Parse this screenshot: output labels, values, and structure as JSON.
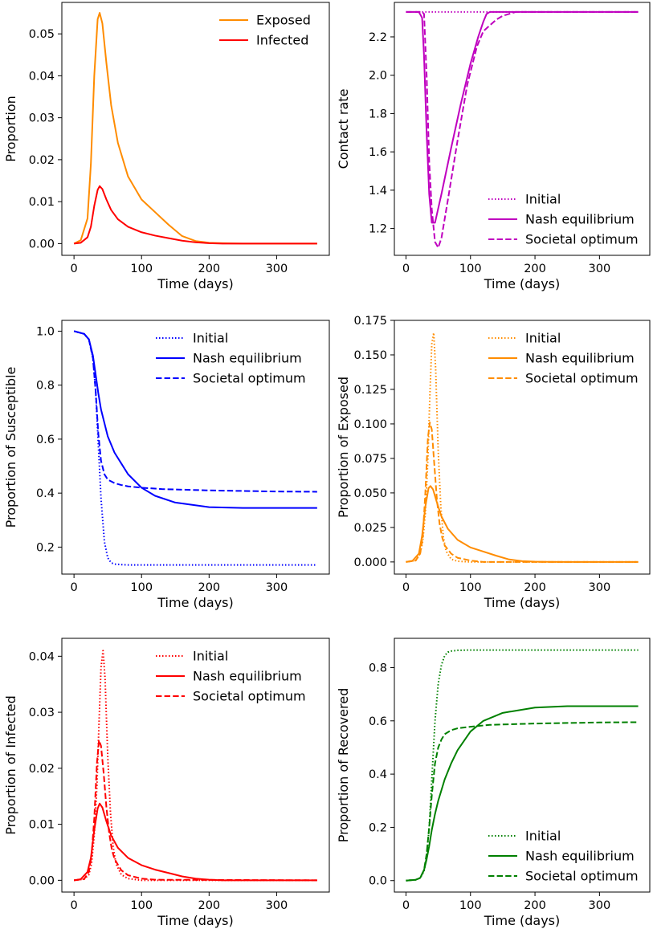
{
  "chart_data": [
    {
      "type": "line",
      "xlabel": "Time (days)",
      "ylabel": "Proportion",
      "xlim": [
        -18,
        378
      ],
      "ylim": [
        -0.0028,
        0.0575
      ],
      "xticks": [
        0,
        100,
        200,
        300
      ],
      "yticks": [
        0.0,
        0.01,
        0.02,
        0.03,
        0.04,
        0.05
      ],
      "ytick_labels": [
        "0.00",
        "0.01",
        "0.02",
        "0.03",
        "0.04",
        "0.05"
      ],
      "legend": "top-right",
      "series": [
        {
          "name": "Exposed",
          "color": "#ff8c00",
          "style": "solid",
          "x": [
            0,
            10,
            20,
            25,
            30,
            35,
            38,
            42,
            48,
            55,
            65,
            80,
            100,
            120,
            140,
            160,
            180,
            200,
            220,
            250,
            300,
            360
          ],
          "y": [
            0,
            0.0008,
            0.006,
            0.019,
            0.04,
            0.0535,
            0.055,
            0.0525,
            0.043,
            0.033,
            0.024,
            0.016,
            0.0105,
            0.0075,
            0.0045,
            0.0018,
            0.0006,
            0.0002,
            0.0001,
            0,
            0,
            0
          ]
        },
        {
          "name": "Infected",
          "color": "#ff0000",
          "style": "solid",
          "x": [
            0,
            10,
            20,
            25,
            30,
            35,
            38,
            42,
            48,
            55,
            65,
            80,
            100,
            120,
            140,
            160,
            180,
            200,
            220,
            250,
            300,
            360
          ],
          "y": [
            0,
            0.0002,
            0.0015,
            0.004,
            0.009,
            0.0128,
            0.0137,
            0.013,
            0.0105,
            0.008,
            0.0058,
            0.004,
            0.0027,
            0.0019,
            0.0013,
            0.0007,
            0.0003,
            0.0001,
            0,
            0,
            0,
            0
          ]
        }
      ]
    },
    {
      "type": "line",
      "xlabel": "Time (days)",
      "ylabel": "Contact rate",
      "xlim": [
        -18,
        378
      ],
      "ylim": [
        1.06,
        2.38
      ],
      "xticks": [
        0,
        100,
        200,
        300
      ],
      "yticks": [
        1.2,
        1.4,
        1.6,
        1.8,
        2.0,
        2.2
      ],
      "ytick_labels": [
        "1.2",
        "1.4",
        "1.6",
        "1.8",
        "2.0",
        "2.2"
      ],
      "legend": "bottom-right",
      "series": [
        {
          "name": "Initial",
          "color": "#bf00bf",
          "style": "dotted",
          "x": [
            0,
            360
          ],
          "y": [
            2.33,
            2.33
          ]
        },
        {
          "name": "Nash equilibrium",
          "color": "#bf00bf",
          "style": "solid",
          "x": [
            0,
            20,
            25,
            28,
            32,
            36,
            40,
            45,
            55,
            70,
            85,
            100,
            112,
            120,
            125,
            130,
            360
          ],
          "y": [
            2.33,
            2.33,
            2.3,
            2.1,
            1.7,
            1.38,
            1.23,
            1.23,
            1.38,
            1.62,
            1.85,
            2.06,
            2.2,
            2.28,
            2.32,
            2.33,
            2.33
          ]
        },
        {
          "name": "Societal optimum",
          "color": "#bf00bf",
          "style": "dashed",
          "x": [
            0,
            25,
            28,
            32,
            36,
            40,
            45,
            50,
            55,
            65,
            80,
            95,
            110,
            120,
            130,
            140,
            150,
            160,
            170,
            360
          ],
          "y": [
            2.33,
            2.33,
            2.32,
            2.0,
            1.55,
            1.3,
            1.13,
            1.1,
            1.15,
            1.35,
            1.66,
            1.95,
            2.15,
            2.23,
            2.26,
            2.29,
            2.31,
            2.32,
            2.33,
            2.33
          ]
        }
      ]
    },
    {
      "type": "line",
      "xlabel": "Time (days)",
      "ylabel": "Proportion of Susceptible",
      "xlim": [
        -18,
        378
      ],
      "ylim": [
        0.1,
        1.04
      ],
      "xticks": [
        0,
        100,
        200,
        300
      ],
      "yticks": [
        0.2,
        0.4,
        0.6,
        0.8,
        1.0
      ],
      "ytick_labels": [
        "0.2",
        "0.4",
        "0.6",
        "0.8",
        "1.0"
      ],
      "legend": "top-right",
      "series": [
        {
          "name": "Initial",
          "color": "#0000ff",
          "style": "dotted",
          "x": [
            0,
            15,
            22,
            28,
            32,
            36,
            40,
            45,
            50,
            55,
            60,
            70,
            80,
            100,
            360
          ],
          "y": [
            1.0,
            0.99,
            0.97,
            0.9,
            0.78,
            0.58,
            0.38,
            0.22,
            0.16,
            0.142,
            0.137,
            0.135,
            0.134,
            0.134,
            0.134
          ]
        },
        {
          "name": "Nash equilibrium",
          "color": "#0000ff",
          "style": "solid",
          "x": [
            0,
            15,
            22,
            28,
            32,
            36,
            40,
            45,
            50,
            60,
            70,
            80,
            100,
            120,
            150,
            200,
            250,
            360
          ],
          "y": [
            1.0,
            0.99,
            0.97,
            0.91,
            0.84,
            0.77,
            0.71,
            0.66,
            0.61,
            0.55,
            0.51,
            0.47,
            0.42,
            0.39,
            0.365,
            0.348,
            0.345,
            0.345
          ]
        },
        {
          "name": "Societal optimum",
          "color": "#0000ff",
          "style": "dashed",
          "x": [
            0,
            15,
            22,
            28,
            32,
            36,
            40,
            45,
            50,
            60,
            70,
            80,
            100,
            130,
            200,
            300,
            360
          ],
          "y": [
            1.0,
            0.99,
            0.97,
            0.9,
            0.78,
            0.62,
            0.52,
            0.47,
            0.45,
            0.437,
            0.43,
            0.425,
            0.42,
            0.415,
            0.41,
            0.406,
            0.405
          ]
        }
      ]
    },
    {
      "type": "line",
      "xlabel": "Time (days)",
      "ylabel": "Proportion of Exposed",
      "xlim": [
        -18,
        378
      ],
      "ylim": [
        -0.0088,
        0.175
      ],
      "xticks": [
        0,
        100,
        200,
        300
      ],
      "yticks": [
        0.0,
        0.025,
        0.05,
        0.075,
        0.1,
        0.125,
        0.15,
        0.175
      ],
      "ytick_labels": [
        "0.000",
        "0.025",
        "0.050",
        "0.075",
        "0.100",
        "0.125",
        "0.150",
        "0.175"
      ],
      "legend": "top-right",
      "series": [
        {
          "name": "Initial",
          "color": "#ff8c00",
          "style": "dotted",
          "x": [
            0,
            15,
            22,
            26,
            30,
            34,
            37,
            40,
            43,
            46,
            50,
            54,
            58,
            62,
            70,
            80,
            100,
            360
          ],
          "y": [
            0,
            0.001,
            0.006,
            0.015,
            0.035,
            0.075,
            0.12,
            0.158,
            0.166,
            0.14,
            0.08,
            0.04,
            0.018,
            0.008,
            0.002,
            0.0005,
            0,
            0
          ]
        },
        {
          "name": "Nash equilibrium",
          "color": "#ff8c00",
          "style": "solid",
          "x": [
            0,
            10,
            20,
            25,
            30,
            35,
            38,
            42,
            48,
            55,
            65,
            80,
            100,
            120,
            140,
            160,
            180,
            200,
            220,
            250,
            300,
            360
          ],
          "y": [
            0,
            0.0008,
            0.006,
            0.019,
            0.04,
            0.0535,
            0.055,
            0.0525,
            0.043,
            0.033,
            0.024,
            0.016,
            0.0105,
            0.0075,
            0.0045,
            0.0018,
            0.0006,
            0.0002,
            0.0001,
            0,
            0,
            0
          ]
        },
        {
          "name": "Societal optimum",
          "color": "#ff8c00",
          "style": "dashed",
          "x": [
            0,
            15,
            22,
            26,
            30,
            34,
            37,
            40,
            44,
            48,
            52,
            56,
            60,
            70,
            80,
            100,
            120,
            360
          ],
          "y": [
            0,
            0.001,
            0.006,
            0.018,
            0.05,
            0.09,
            0.101,
            0.096,
            0.07,
            0.045,
            0.028,
            0.018,
            0.012,
            0.006,
            0.003,
            0.001,
            0,
            0
          ]
        }
      ]
    },
    {
      "type": "line",
      "xlabel": "Time (days)",
      "ylabel": "Proportion of Infected",
      "xlim": [
        -18,
        378
      ],
      "ylim": [
        -0.0021,
        0.0432
      ],
      "xticks": [
        0,
        100,
        200,
        300
      ],
      "yticks": [
        0.0,
        0.01,
        0.02,
        0.03,
        0.04
      ],
      "ytick_labels": [
        "0.00",
        "0.01",
        "0.02",
        "0.03",
        "0.04"
      ],
      "legend": "top-right",
      "series": [
        {
          "name": "Initial",
          "color": "#ff0000",
          "style": "dotted",
          "x": [
            0,
            15,
            22,
            26,
            30,
            34,
            37,
            40,
            43,
            46,
            50,
            54,
            58,
            62,
            70,
            80,
            100,
            360
          ],
          "y": [
            0,
            0.0002,
            0.001,
            0.003,
            0.008,
            0.017,
            0.028,
            0.038,
            0.041,
            0.036,
            0.022,
            0.012,
            0.006,
            0.003,
            0.001,
            0.0003,
            0,
            0
          ]
        },
        {
          "name": "Nash equilibrium",
          "color": "#ff0000",
          "style": "solid",
          "x": [
            0,
            10,
            20,
            25,
            30,
            35,
            38,
            42,
            48,
            55,
            65,
            80,
            100,
            120,
            140,
            160,
            180,
            200,
            220,
            250,
            300,
            360
          ],
          "y": [
            0,
            0.0002,
            0.0015,
            0.004,
            0.009,
            0.0128,
            0.0137,
            0.013,
            0.0105,
            0.008,
            0.0058,
            0.004,
            0.0027,
            0.0019,
            0.0013,
            0.0007,
            0.0003,
            0.0001,
            0,
            0,
            0,
            0
          ]
        },
        {
          "name": "Societal optimum",
          "color": "#ff0000",
          "style": "dashed",
          "x": [
            0,
            15,
            22,
            26,
            30,
            34,
            37,
            40,
            44,
            48,
            52,
            56,
            60,
            70,
            80,
            100,
            120,
            360
          ],
          "y": [
            0,
            0.0002,
            0.0015,
            0.0045,
            0.011,
            0.021,
            0.025,
            0.024,
            0.019,
            0.013,
            0.0085,
            0.0055,
            0.0038,
            0.0018,
            0.0009,
            0.0003,
            0.0001,
            0
          ]
        }
      ]
    },
    {
      "type": "line",
      "xlabel": "Time (days)",
      "ylabel": "Proportion of Recovered",
      "xlim": [
        -18,
        378
      ],
      "ylim": [
        -0.043,
        0.91
      ],
      "xticks": [
        0,
        100,
        200,
        300
      ],
      "yticks": [
        0.0,
        0.2,
        0.4,
        0.6,
        0.8
      ],
      "ytick_labels": [
        "0.0",
        "0.2",
        "0.4",
        "0.6",
        "0.8"
      ],
      "legend": "bottom-right",
      "series": [
        {
          "name": "Initial",
          "color": "#008000",
          "style": "dotted",
          "x": [
            0,
            15,
            22,
            28,
            32,
            36,
            40,
            45,
            50,
            55,
            60,
            65,
            70,
            80,
            100,
            360
          ],
          "y": [
            0,
            0.003,
            0.01,
            0.035,
            0.09,
            0.2,
            0.38,
            0.6,
            0.74,
            0.81,
            0.845,
            0.858,
            0.862,
            0.865,
            0.866,
            0.866
          ]
        },
        {
          "name": "Nash equilibrium",
          "color": "#008000",
          "style": "solid",
          "x": [
            0,
            15,
            22,
            28,
            32,
            36,
            40,
            45,
            50,
            60,
            70,
            80,
            100,
            120,
            150,
            200,
            250,
            360
          ],
          "y": [
            0,
            0.003,
            0.01,
            0.04,
            0.08,
            0.13,
            0.19,
            0.25,
            0.3,
            0.38,
            0.44,
            0.49,
            0.56,
            0.6,
            0.63,
            0.65,
            0.655,
            0.655
          ]
        },
        {
          "name": "Societal optimum",
          "color": "#008000",
          "style": "dashed",
          "x": [
            0,
            15,
            22,
            28,
            32,
            36,
            40,
            45,
            50,
            55,
            60,
            70,
            80,
            100,
            130,
            200,
            300,
            360
          ],
          "y": [
            0,
            0.003,
            0.01,
            0.04,
            0.1,
            0.2,
            0.32,
            0.44,
            0.5,
            0.53,
            0.55,
            0.565,
            0.572,
            0.578,
            0.585,
            0.59,
            0.594,
            0.595
          ]
        }
      ]
    }
  ]
}
